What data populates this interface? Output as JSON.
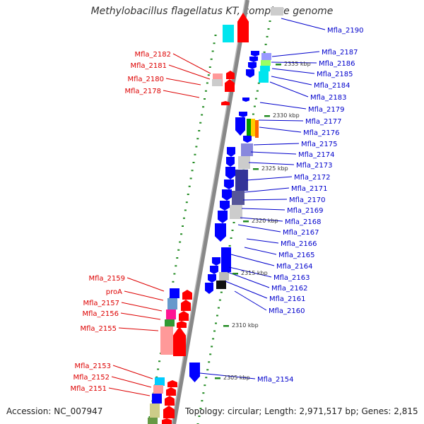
{
  "title": "Methylobacillus flagellatus KT, complete genome",
  "accession": "Accession: NC_007947",
  "topology": "Topology: circular; Length: 2,971,517 bp; Genes: 2,815",
  "colors": {
    "forward_label": "#0000cc",
    "reverse_label": "#dd0000",
    "forward_gene": "#0000ff",
    "reverse_gene": "#ff0000",
    "backbone": "#888888",
    "tick": "#228b22"
  },
  "scale_marks": [
    "2335 kbp",
    "2330 kbp",
    "2325 kbp",
    "2320 kbp",
    "2315 kbp",
    "2310 kbp",
    "2305 kbp"
  ],
  "forward_labels": [
    "Mfla_2190",
    "Mfla_2187",
    "Mfla_2186",
    "Mfla_2185",
    "Mfla_2184",
    "Mfla_2183",
    "Mfla_2179",
    "Mfla_2177",
    "Mfla_2176",
    "Mfla_2175",
    "Mfla_2174",
    "Mfla_2173",
    "Mfla_2172",
    "Mfla_2171",
    "Mfla_2170",
    "Mfla_2169",
    "Mfla_2168",
    "Mfla_2167",
    "Mfla_2166",
    "Mfla_2165",
    "Mfla_2164",
    "Mfla_2163",
    "Mfla_2162",
    "Mfla_2161",
    "Mfla_2160",
    "Mfla_2154"
  ],
  "reverse_labels": [
    "Mfla_2182",
    "Mfla_2181",
    "Mfla_2180",
    "Mfla_2178",
    "Mfla_2159",
    "proA",
    "Mfla_2157",
    "Mfla_2156",
    "Mfla_2155",
    "Mfla_2153",
    "Mfla_2152",
    "Mfla_2151"
  ]
}
